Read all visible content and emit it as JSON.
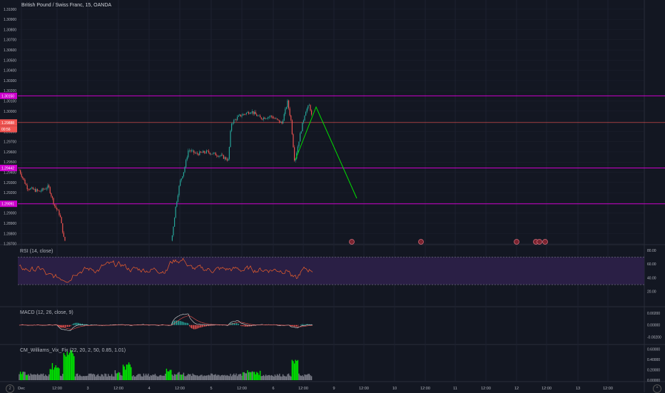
{
  "chart": {
    "title": "British Pound / Swiss Franc, 15, OANDA",
    "symbol": "GBPCHF",
    "interval": "15",
    "source": "OANDA"
  },
  "price_axis": {
    "ticks": [
      "1.31000",
      "1.30900",
      "1.30800",
      "1.30700",
      "1.30600",
      "1.30500",
      "1.30400",
      "1.30300",
      "1.30200",
      "1.30100",
      "1.30000",
      "1.29900",
      "1.29800",
      "1.29700",
      "1.29600",
      "1.29500",
      "1.29400",
      "1.29300",
      "1.29200",
      "1.29100",
      "1.29000",
      "1.28900",
      "1.28800",
      "1.28700"
    ],
    "tags": [
      {
        "name": "res-upper",
        "text": "1.30150",
        "value": 1.3015,
        "color": "#cc00cc"
      },
      {
        "name": "last-price",
        "text": "1.29888",
        "value": 1.29888,
        "color": "#ef5350"
      },
      {
        "name": "countdown",
        "text": "00:56",
        "value": 1.29824,
        "color": "#ef5350"
      },
      {
        "name": "support-mid",
        "text": "1.29442",
        "value": 1.29442,
        "color": "#cc00cc"
      },
      {
        "name": "support-low",
        "text": "1.29091",
        "value": 1.29091,
        "color": "#cc00cc"
      }
    ]
  },
  "levels": [
    {
      "value": 1.3015,
      "color": "#cc00cc"
    },
    {
      "value": 1.29442,
      "color": "#cc00cc"
    },
    {
      "value": 1.29091,
      "color": "#cc00cc"
    },
    {
      "value": 1.29888,
      "color": "#ef5350"
    }
  ],
  "time_axis": {
    "labels": [
      "Dec",
      "12:00",
      "3",
      "12:00",
      "4",
      "12:00",
      "5",
      "12:00",
      "6",
      "12:00",
      "9",
      "12:00",
      "10",
      "12:00",
      "11",
      "12:00",
      "12",
      "12:00",
      "13",
      "12:00"
    ]
  },
  "rsi": {
    "label": "RSI (14, close)",
    "ticks": [
      "80.00",
      "60.00",
      "40.00",
      "20.00"
    ],
    "upper": 70,
    "lower": 30
  },
  "macd": {
    "label": "MACD (12, 26, close, 9)",
    "ticks": [
      "0.00200",
      "0.00000",
      "-0.00200"
    ]
  },
  "vix": {
    "label": "CM_Williams_Vix_Fix (22, 20, 2, 50, 0.85, 1.01)",
    "ticks": [
      "0.60000",
      "0.40000",
      "0.20000",
      "0.00000"
    ]
  },
  "colors": {
    "background": "#131722",
    "up": "#26a69a",
    "down": "#ef5350",
    "level": "#cc00cc",
    "projection": "#00e000",
    "rsi_line": "#f0602a",
    "rsi_band": "#2a1f45",
    "macd_line": "#e0e0e0",
    "signal_line": "#ef5350",
    "vix_high": "#00e600",
    "vix_normal": "#787b86",
    "grid": "#1e2230"
  },
  "bottom_left_icon": "tradingview-logo-icon",
  "bottom_right_icon": "chevron-up-icon"
}
